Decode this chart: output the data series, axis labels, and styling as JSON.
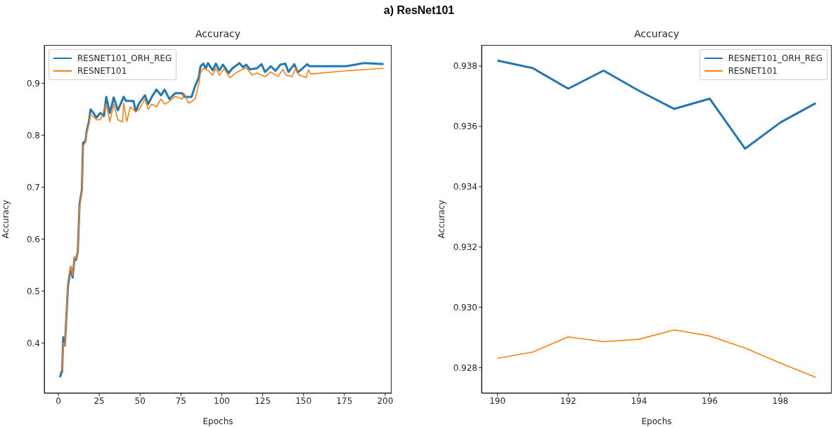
{
  "chart_data": [
    {
      "type": "line",
      "title": "Accuracy",
      "xlabel": "Epochs",
      "ylabel": "Accuracy",
      "annotations": [
        "a) ResNet101"
      ],
      "legend": "top left",
      "xlim": [
        -8.6,
        203.9
      ],
      "xticks": [
        0,
        25,
        50,
        75,
        100,
        125,
        150,
        175,
        200
      ],
      "ylim": [
        0.303,
        0.974
      ],
      "yticks": [
        0.4,
        0.5,
        0.6,
        0.7,
        0.8,
        0.9
      ],
      "series": [
        {
          "name": "RESNET101_ORH_REG",
          "color": "#1f77b4",
          "x": [
            0.9,
            2.3,
            3,
            4,
            5.9,
            7.6,
            8.7,
            9.9,
            10.9,
            11.9,
            13,
            14.4,
            15.1,
            16.6,
            17.3,
            18.7,
            19.7,
            21.5,
            23.3,
            25.7,
            27.9,
            29.3,
            31.5,
            33.9,
            36.4,
            40,
            41.4,
            43,
            46,
            47.3,
            49.5,
            53,
            55,
            57.2,
            60,
            62.9,
            65,
            67.9,
            71.5,
            75.8,
            77.2,
            81.5,
            83.7,
            85.9,
            87,
            88.7,
            90.2,
            91.6,
            94.5,
            96.4,
            98.5,
            100.7,
            104.3,
            106.5,
            110.8,
            113,
            115,
            117.2,
            121.5,
            124.3,
            126.5,
            130,
            132.9,
            135.8,
            138.9,
            140.8,
            144.4,
            146.5,
            149.4,
            152.3,
            153.7,
            158,
            176,
            187,
            199
          ],
          "values": [
            0.334,
            0.345,
            0.411,
            0.395,
            0.51,
            0.546,
            0.526,
            0.564,
            0.56,
            0.577,
            0.668,
            0.695,
            0.785,
            0.789,
            0.807,
            0.826,
            0.85,
            0.843,
            0.834,
            0.843,
            0.837,
            0.874,
            0.843,
            0.873,
            0.848,
            0.874,
            0.866,
            0.866,
            0.866,
            0.846,
            0.862,
            0.877,
            0.86,
            0.874,
            0.888,
            0.877,
            0.888,
            0.87,
            0.881,
            0.881,
            0.874,
            0.874,
            0.895,
            0.911,
            0.933,
            0.938,
            0.929,
            0.939,
            0.925,
            0.938,
            0.925,
            0.936,
            0.92,
            0.929,
            0.939,
            0.931,
            0.936,
            0.927,
            0.929,
            0.937,
            0.922,
            0.933,
            0.924,
            0.936,
            0.938,
            0.922,
            0.937,
            0.921,
            0.929,
            0.937,
            0.933,
            0.933,
            0.933,
            0.939,
            0.937
          ]
        },
        {
          "name": "RESNET101",
          "color": "#ff7f0e",
          "x": [
            0.9,
            2.3,
            3,
            4,
            5.9,
            7.6,
            8.7,
            9.9,
            10.9,
            11.9,
            13,
            14.4,
            15.1,
            16.6,
            17.3,
            18.7,
            19.7,
            21.5,
            23.3,
            25.7,
            29.3,
            31.5,
            33.9,
            36.4,
            39.3,
            40,
            41.9,
            44,
            47.3,
            49.5,
            53,
            55,
            57.2,
            60,
            62.9,
            65,
            67.9,
            71.5,
            75.8,
            77.2,
            79.6,
            81.5,
            83.7,
            86,
            87,
            88.7,
            91.6,
            94.5,
            96.4,
            98.5,
            101.4,
            105,
            108.6,
            111.4,
            115,
            118.6,
            121.5,
            126.5,
            130,
            134.4,
            137.3,
            139.4,
            143,
            145.2,
            147.3,
            151.6,
            153,
            154.5,
            175,
            199
          ],
          "values": [
            0.34,
            0.35,
            0.4,
            0.395,
            0.52,
            0.548,
            0.53,
            0.566,
            0.562,
            0.58,
            0.66,
            0.692,
            0.78,
            0.786,
            0.803,
            0.82,
            0.84,
            0.836,
            0.83,
            0.83,
            0.86,
            0.826,
            0.86,
            0.83,
            0.826,
            0.862,
            0.826,
            0.855,
            0.845,
            0.85,
            0.87,
            0.85,
            0.86,
            0.855,
            0.87,
            0.86,
            0.865,
            0.875,
            0.87,
            0.88,
            0.862,
            0.865,
            0.87,
            0.9,
            0.92,
            0.929,
            0.925,
            0.916,
            0.929,
            0.916,
            0.928,
            0.911,
            0.92,
            0.925,
            0.93,
            0.916,
            0.92,
            0.913,
            0.922,
            0.913,
            0.927,
            0.916,
            0.913,
            0.929,
            0.916,
            0.911,
            0.926,
            0.918,
            0.924,
            0.929
          ]
        }
      ]
    },
    {
      "type": "line",
      "title": "Accuracy",
      "xlabel": "Epochs",
      "ylabel": "Accuracy",
      "legend": "top right",
      "xlim": [
        189.55,
        199.45
      ],
      "xticks": [
        190,
        192,
        194,
        196,
        198
      ],
      "ylim": [
        0.92715,
        0.9387
      ],
      "yticks": [
        0.928,
        {
          "value": 0.93,
          "label": "0.930"
        },
        0.932,
        0.934,
        0.936,
        0.938
      ],
      "series": [
        {
          "name": "RESNET101_ORH_REG",
          "color": "#1f77b4",
          "x": [
            190,
            191,
            192,
            193,
            194,
            195,
            196,
            197,
            198,
            199
          ],
          "values": [
            0.93818,
            0.93793,
            0.93725,
            0.93785,
            0.93718,
            0.93658,
            0.93692,
            0.93526,
            0.93613,
            0.93677
          ]
        },
        {
          "name": "RESNET101",
          "color": "#ff7f0e",
          "x": [
            190,
            191,
            192,
            193,
            194,
            195,
            196,
            197,
            198,
            199
          ],
          "values": [
            0.92831,
            0.92852,
            0.92902,
            0.92886,
            0.92894,
            0.92925,
            0.92905,
            0.92865,
            0.92815,
            0.92768
          ]
        }
      ]
    }
  ]
}
